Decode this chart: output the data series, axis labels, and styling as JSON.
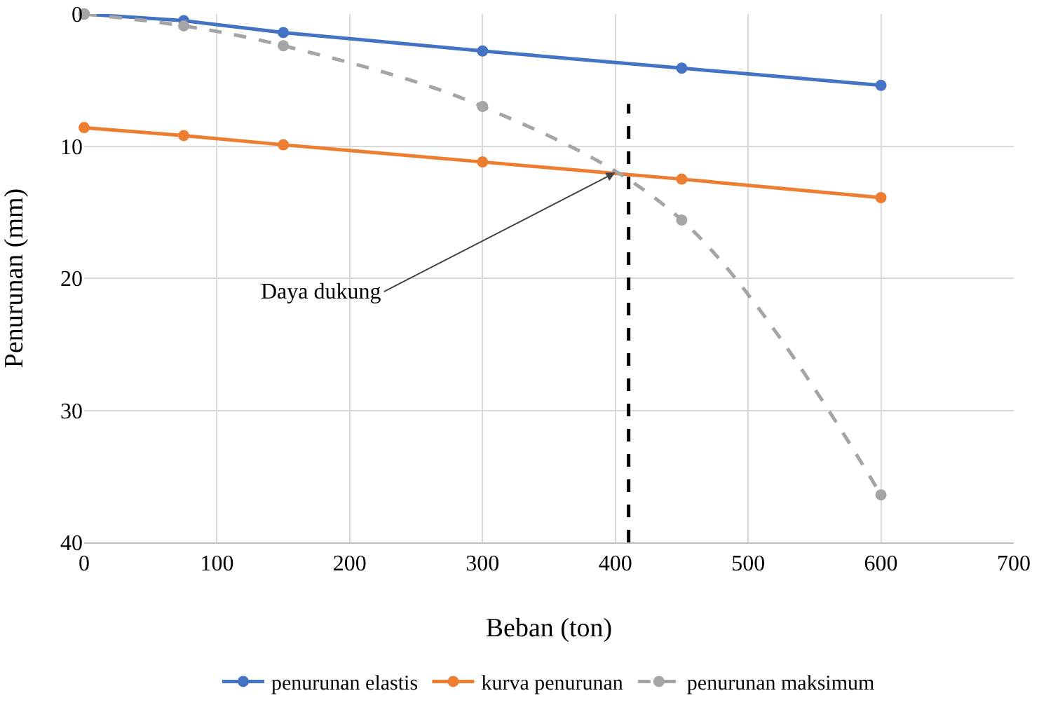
{
  "chart_data": {
    "type": "line",
    "xlabel": "Beban (ton)",
    "ylabel": "Penurunan (mm)",
    "x": [
      0,
      75,
      150,
      300,
      450,
      600
    ],
    "series": [
      {
        "name": "penurunan elastis",
        "color": "#4472c4",
        "values": [
          0,
          0.5,
          1.4,
          2.8,
          4.1,
          5.4
        ]
      },
      {
        "name": "kurva penurunan",
        "color": "#ed7d31",
        "values": [
          8.6,
          9.2,
          9.9,
          11.2,
          12.5,
          13.9
        ]
      },
      {
        "name": "penurunan maksimum",
        "color": "#a5a5a5",
        "values": [
          0,
          0.9,
          2.4,
          7.0,
          15.6,
          36.4
        ],
        "line_style": "dashed"
      }
    ],
    "xlim": [
      0,
      700
    ],
    "xticks": [
      0,
      100,
      200,
      300,
      400,
      500,
      600,
      700
    ],
    "ylim": [
      40,
      0
    ],
    "yticks": [
      0,
      10,
      20,
      30,
      40
    ],
    "grid": true,
    "legend": "bottom",
    "marker": "circle",
    "ref_lines": [
      {
        "axis": "x",
        "value": 410,
        "color": "#000000",
        "line_style": "dashed"
      }
    ],
    "annotations": [
      {
        "text": "Daya dukung",
        "x": 400,
        "y": 12
      }
    ]
  }
}
